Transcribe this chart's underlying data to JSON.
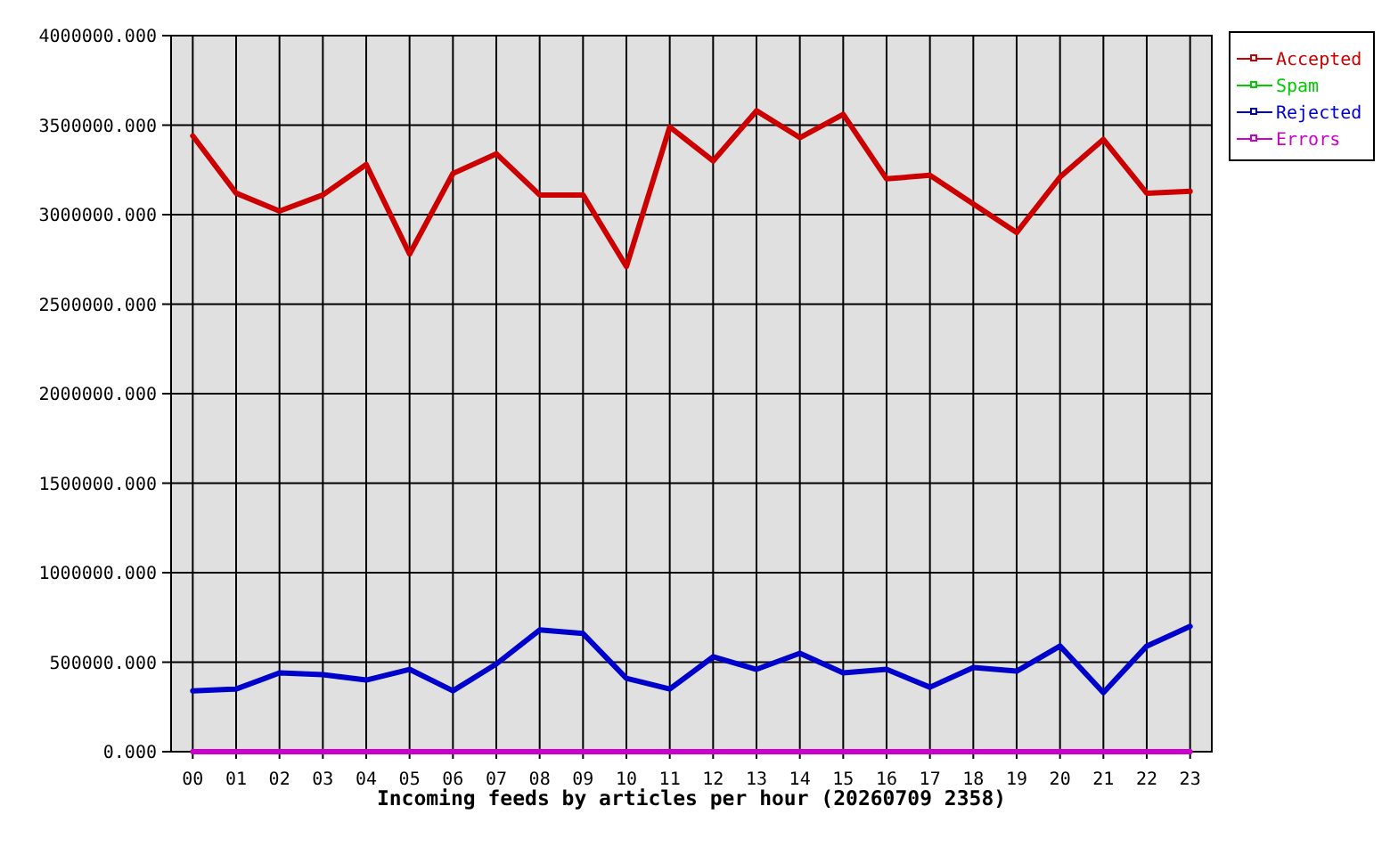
{
  "chart_data": {
    "type": "line",
    "xlabel": "Incoming feeds by articles per hour (20260709 2358)",
    "categories": [
      "00",
      "01",
      "02",
      "03",
      "04",
      "05",
      "06",
      "07",
      "08",
      "09",
      "10",
      "11",
      "12",
      "13",
      "14",
      "15",
      "16",
      "17",
      "18",
      "19",
      "20",
      "21",
      "22",
      "23"
    ],
    "series": [
      {
        "name": "Accepted",
        "color": "#cc0000",
        "values": [
          3440000,
          3120000,
          3020000,
          3110000,
          3280000,
          2780000,
          3230000,
          3340000,
          3110000,
          3110000,
          2710000,
          3490000,
          3300000,
          3580000,
          3430000,
          3560000,
          3200000,
          3220000,
          3060000,
          2900000,
          3210000,
          3420000,
          3120000,
          3130000
        ]
      },
      {
        "name": "Spam",
        "color": "#00cc00",
        "values": [
          null,
          null,
          null,
          null,
          null,
          null,
          null,
          null,
          null,
          null,
          null,
          null,
          null,
          null,
          null,
          null,
          null,
          null,
          null,
          null,
          null,
          null,
          null,
          null
        ]
      },
      {
        "name": "Rejected",
        "color": "#0000cc",
        "values": [
          340000,
          350000,
          440000,
          430000,
          400000,
          460000,
          340000,
          490000,
          680000,
          660000,
          410000,
          350000,
          530000,
          460000,
          550000,
          440000,
          460000,
          360000,
          470000,
          450000,
          590000,
          330000,
          590000,
          700000
        ]
      },
      {
        "name": "Errors",
        "color": "#cc00cc",
        "values": [
          0,
          0,
          0,
          0,
          0,
          0,
          0,
          0,
          0,
          0,
          0,
          0,
          0,
          0,
          0,
          0,
          0,
          0,
          0,
          0,
          0,
          0,
          0,
          0
        ]
      }
    ],
    "ylim": [
      0,
      4000000
    ],
    "yticks": [
      {
        "value": 0,
        "label": "0.000"
      },
      {
        "value": 500000,
        "label": "500000.000"
      },
      {
        "value": 1000000,
        "label": "1000000.000"
      },
      {
        "value": 1500000,
        "label": "1500000.000"
      },
      {
        "value": 2000000,
        "label": "2000000.000"
      },
      {
        "value": 2500000,
        "label": "2500000.000"
      },
      {
        "value": 3000000,
        "label": "3000000.000"
      },
      {
        "value": 3500000,
        "label": "3500000.000"
      },
      {
        "value": 4000000,
        "label": "4000000.000"
      }
    ],
    "grid": true,
    "legend": "top right"
  }
}
